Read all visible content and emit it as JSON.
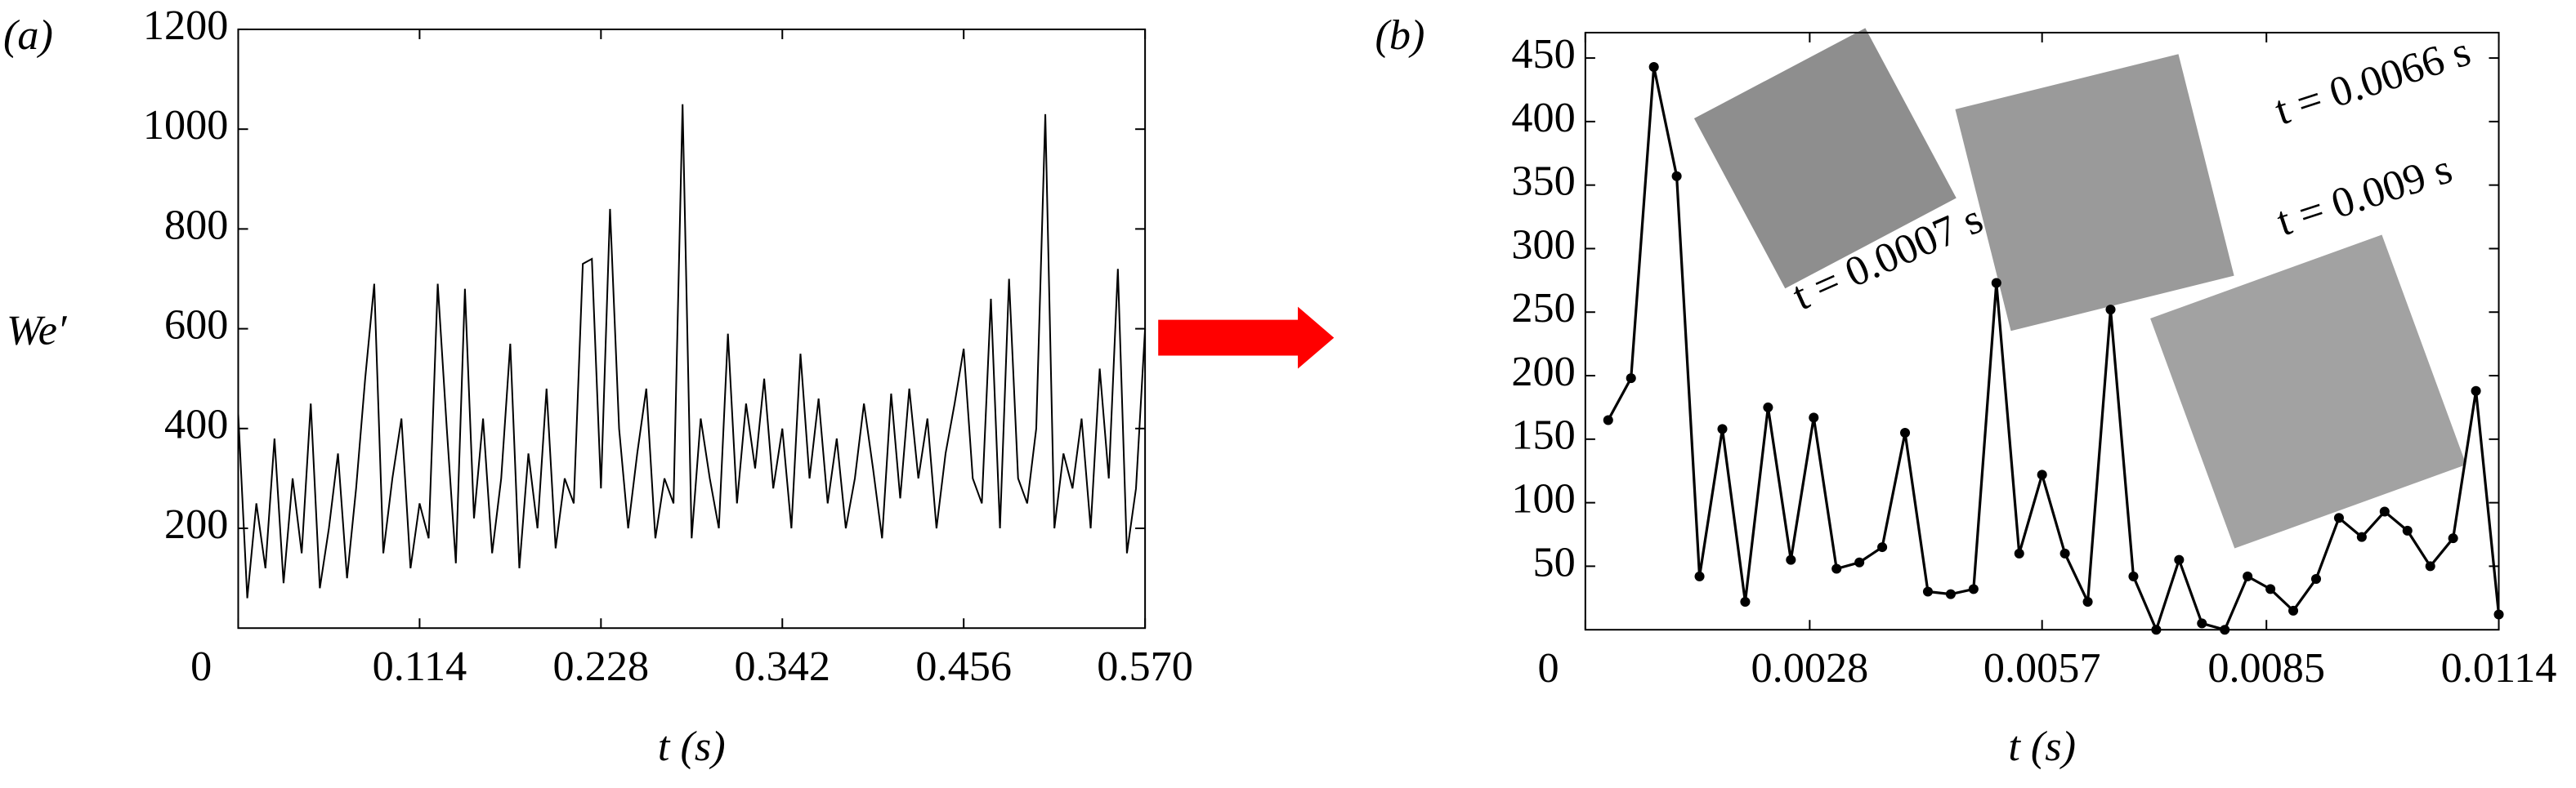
{
  "chart_data": [
    {
      "type": "line",
      "panel_label": "(a)",
      "y_label": "We′",
      "x_label": "t (s)",
      "color": "#000000",
      "xlim": [
        0,
        0.57
      ],
      "ylim": [
        0,
        1200
      ],
      "xticks": [
        0,
        0.114,
        0.228,
        0.342,
        0.456,
        {
          "value": 0.57,
          "label": "0.570"
        }
      ],
      "yticks": [
        200,
        400,
        600,
        800,
        1000,
        1200
      ],
      "x": [
        0,
        0.0057,
        0.0114,
        0.0171,
        0.0228,
        0.0285,
        0.0342,
        0.0399,
        0.0456,
        0.0513,
        0.057,
        0.0627,
        0.0684,
        0.0741,
        0.0798,
        0.0855,
        0.0912,
        0.0969,
        0.1026,
        0.1083,
        0.114,
        0.1197,
        0.1254,
        0.1311,
        0.1368,
        0.1425,
        0.1482,
        0.1539,
        0.1596,
        0.1653,
        0.171,
        0.1767,
        0.1824,
        0.1881,
        0.1938,
        0.1995,
        0.2052,
        0.2109,
        0.2166,
        0.2223,
        0.228,
        0.2337,
        0.2394,
        0.2451,
        0.2508,
        0.2565,
        0.2622,
        0.2679,
        0.2736,
        0.2793,
        0.285,
        0.2907,
        0.2964,
        0.3021,
        0.3078,
        0.3135,
        0.3192,
        0.3249,
        0.3306,
        0.3363,
        0.342,
        0.3477,
        0.3534,
        0.3591,
        0.3648,
        0.3705,
        0.3762,
        0.3819,
        0.3876,
        0.3933,
        0.399,
        0.4047,
        0.4104,
        0.4161,
        0.4218,
        0.4275,
        0.4332,
        0.4389,
        0.4446,
        0.4503,
        0.456,
        0.4617,
        0.4674,
        0.4731,
        0.4788,
        0.4845,
        0.4902,
        0.4959,
        0.5016,
        0.5073,
        0.513,
        0.5187,
        0.5244,
        0.5301,
        0.5358,
        0.5415,
        0.5472,
        0.5529,
        0.5586,
        0.5643,
        0.57
      ],
      "values": [
        430,
        60,
        250,
        120,
        380,
        90,
        300,
        150,
        450,
        80,
        200,
        350,
        100,
        280,
        500,
        690,
        150,
        300,
        420,
        120,
        250,
        180,
        690,
        400,
        130,
        680,
        220,
        420,
        150,
        300,
        570,
        120,
        350,
        200,
        480,
        160,
        300,
        250,
        730,
        740,
        280,
        840,
        400,
        200,
        350,
        480,
        180,
        300,
        250,
        1050,
        180,
        420,
        300,
        200,
        590,
        250,
        450,
        320,
        500,
        280,
        400,
        200,
        550,
        300,
        460,
        250,
        380,
        200,
        300,
        450,
        320,
        180,
        470,
        260,
        480,
        300,
        420,
        200,
        350,
        450,
        560,
        300,
        250,
        660,
        200,
        700,
        300,
        250,
        400,
        1030,
        200,
        350,
        280,
        420,
        200,
        520,
        300,
        720,
        150,
        280,
        600
      ]
    },
    {
      "type": "line",
      "panel_label": "(b)",
      "x_label": "t (s)",
      "color": "#000000",
      "markers": true,
      "xlim": [
        0,
        0.0114
      ],
      "ylim": [
        0,
        470
      ],
      "xticks": [
        0,
        0.0028,
        0.0057,
        0.0085,
        0.0114
      ],
      "yticks": [
        50,
        100,
        150,
        200,
        250,
        300,
        350,
        400,
        450
      ],
      "x": [
        0.000285,
        0.00057,
        0.000855,
        0.00114,
        0.001425,
        0.00171,
        0.001995,
        0.00228,
        0.002565,
        0.00285,
        0.003135,
        0.00342,
        0.003705,
        0.00399,
        0.004275,
        0.00456,
        0.004845,
        0.00513,
        0.005415,
        0.0057,
        0.005985,
        0.00627,
        0.006555,
        0.00684,
        0.007125,
        0.00741,
        0.007695,
        0.00798,
        0.008265,
        0.00855,
        0.008835,
        0.00912,
        0.009405,
        0.00969,
        0.009975,
        0.01026,
        0.010545,
        0.01083,
        0.011115,
        0.0114
      ],
      "values": [
        165,
        198,
        443,
        357,
        42,
        158,
        22,
        175,
        55,
        167,
        48,
        53,
        65,
        155,
        30,
        28,
        32,
        273,
        60,
        122,
        60,
        22,
        252,
        42,
        0,
        55,
        5,
        0,
        42,
        32,
        15,
        40,
        88,
        73,
        93,
        78,
        50,
        72,
        188,
        12
      ],
      "annotations": [
        "t = 0.0007 s",
        "t = 0.0066 s",
        "t = 0.009 s"
      ]
    }
  ]
}
